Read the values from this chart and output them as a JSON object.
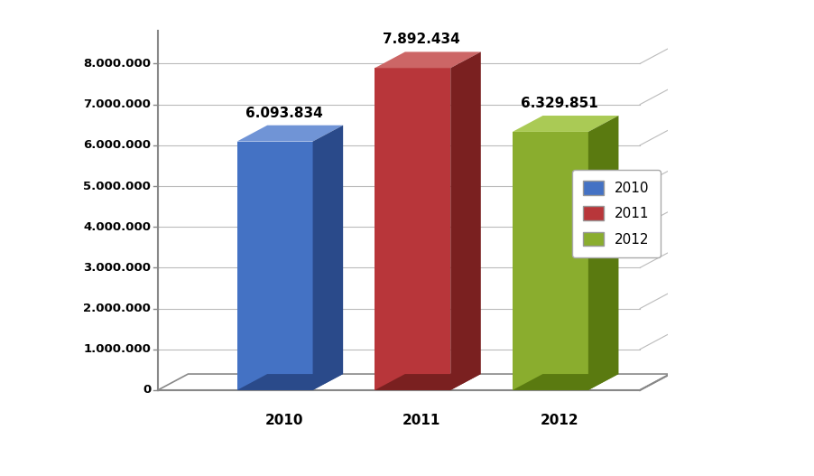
{
  "categories": [
    "2010",
    "2011",
    "2012"
  ],
  "values": [
    6093834,
    7892434,
    6329851
  ],
  "labels": [
    "6.093.834",
    "7.892.434",
    "6.329.851"
  ],
  "legend_labels": [
    "2010",
    "2011",
    "2012"
  ],
  "bar_colors_front": [
    "#4472C4",
    "#B8363A",
    "#8AAD2E"
  ],
  "bar_colors_top": [
    "#7094D6",
    "#CC6666",
    "#AACA55"
  ],
  "bar_colors_side": [
    "#2A4A8A",
    "#7A2020",
    "#5A7A10"
  ],
  "yticks": [
    0,
    1000000,
    2000000,
    3000000,
    4000000,
    5000000,
    6000000,
    7000000,
    8000000
  ],
  "ytick_labels": [
    "0",
    "1.000.000",
    "2.000.000",
    "3.000.000",
    "4.000.000",
    "5.000.000",
    "6.000.000",
    "7.000.000",
    "8.000.000"
  ],
  "ymax": 8800000,
  "background_color": "#FFFFFF",
  "grid_color": "#BBBBBB",
  "axis_color": "#888888"
}
